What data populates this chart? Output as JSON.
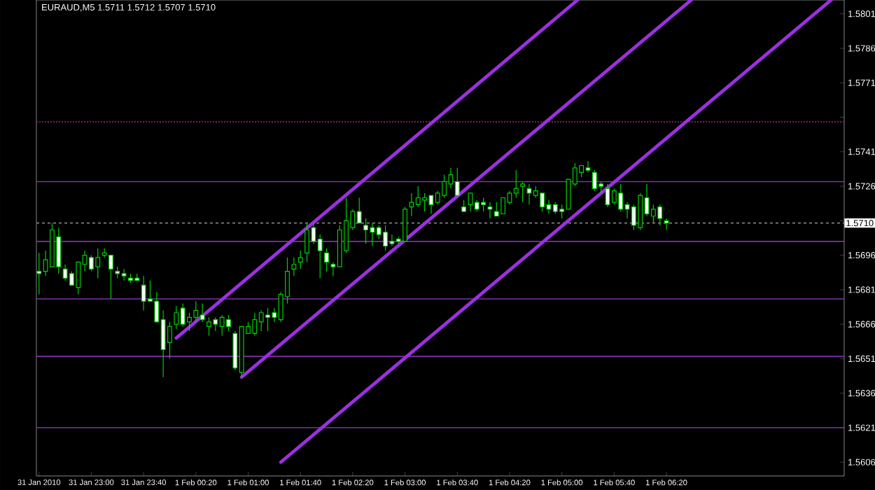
{
  "chart_data": {
    "type": "candlestick",
    "title": "EURAUD,M5  1.5711 1.5712 1.5707 1.5710",
    "color": "#00d000",
    "x": [
      "2010-01-31T22:20",
      "2010-01-31T22:25",
      "2010-01-31T22:30",
      "2010-01-31T22:35",
      "2010-01-31T22:40",
      "2010-01-31T22:45",
      "2010-01-31T22:50",
      "2010-01-31T22:55",
      "2010-01-31T23:00",
      "2010-01-31T23:05",
      "2010-01-31T23:10",
      "2010-01-31T23:15",
      "2010-01-31T23:20",
      "2010-01-31T23:25",
      "2010-01-31T23:30",
      "2010-01-31T23:35",
      "2010-01-31T23:40",
      "2010-01-31T23:45",
      "2010-01-31T23:50",
      "2010-01-31T23:55",
      "2010-02-01T00:00",
      "2010-02-01T00:05",
      "2010-02-01T00:10",
      "2010-02-01T00:15",
      "2010-02-01T00:20",
      "2010-02-01T00:25",
      "2010-02-01T00:30",
      "2010-02-01T00:35",
      "2010-02-01T00:40",
      "2010-02-01T00:45",
      "2010-02-01T00:50",
      "2010-02-01T00:55",
      "2010-02-01T01:00",
      "2010-02-01T01:05",
      "2010-02-01T01:10",
      "2010-02-01T01:15",
      "2010-02-01T01:20",
      "2010-02-01T01:25",
      "2010-02-01T01:30",
      "2010-02-01T01:35",
      "2010-02-01T01:40",
      "2010-02-01T01:45",
      "2010-02-01T01:50",
      "2010-02-01T01:55",
      "2010-02-01T02:00",
      "2010-02-01T02:05",
      "2010-02-01T02:10",
      "2010-02-01T02:15",
      "2010-02-01T02:20",
      "2010-02-01T02:25",
      "2010-02-01T02:30",
      "2010-02-01T02:35",
      "2010-02-01T02:40",
      "2010-02-01T02:45",
      "2010-02-01T02:50",
      "2010-02-01T02:55",
      "2010-02-01T03:00",
      "2010-02-01T03:05",
      "2010-02-01T03:10",
      "2010-02-01T03:15",
      "2010-02-01T03:20",
      "2010-02-01T03:25",
      "2010-02-01T03:30",
      "2010-02-01T03:35",
      "2010-02-01T03:40",
      "2010-02-01T03:45",
      "2010-02-01T03:50",
      "2010-02-01T03:55",
      "2010-02-01T04:00",
      "2010-02-01T04:05",
      "2010-02-01T04:10",
      "2010-02-01T04:15",
      "2010-02-01T04:20",
      "2010-02-01T04:25",
      "2010-02-01T04:30",
      "2010-02-01T04:35",
      "2010-02-01T04:40",
      "2010-02-01T04:45",
      "2010-02-01T04:50",
      "2010-02-01T04:55",
      "2010-02-01T05:00",
      "2010-02-01T05:05",
      "2010-02-01T05:10",
      "2010-02-01T05:15",
      "2010-02-01T05:20",
      "2010-02-01T05:25",
      "2010-02-01T05:30",
      "2010-02-01T05:35",
      "2010-02-01T05:40",
      "2010-02-01T05:45",
      "2010-02-01T05:50",
      "2010-02-01T05:55",
      "2010-02-01T06:00",
      "2010-02-01T06:05",
      "2010-02-01T06:10",
      "2010-02-01T06:15",
      "2010-02-01T06:20"
    ],
    "ohlc": [
      [
        1.5689,
        1.5697,
        1.5679,
        1.5688
      ],
      [
        1.5689,
        1.5698,
        1.5687,
        1.5694
      ],
      [
        1.5691,
        1.571,
        1.5691,
        1.5707
      ],
      [
        1.5704,
        1.5708,
        1.5688,
        1.5691
      ],
      [
        1.569,
        1.5692,
        1.5685,
        1.5686
      ],
      [
        1.5688,
        1.5689,
        1.5683,
        1.5683
      ],
      [
        1.5682,
        1.5693,
        1.5679,
        1.5693
      ],
      [
        1.5692,
        1.5698,
        1.5689,
        1.5696
      ],
      [
        1.5695,
        1.5696,
        1.5689,
        1.569
      ],
      [
        1.5691,
        1.5699,
        1.5686,
        1.5695
      ],
      [
        1.5696,
        1.5699,
        1.5695,
        1.5697
      ],
      [
        1.5696,
        1.5696,
        1.5677,
        1.569
      ],
      [
        1.5689,
        1.5691,
        1.5686,
        1.5688
      ],
      [
        1.5688,
        1.569,
        1.5685,
        1.5687
      ],
      [
        1.5686,
        1.5688,
        1.5684,
        1.5685
      ],
      [
        1.5686,
        1.5688,
        1.5685,
        1.5685
      ],
      [
        1.5683,
        1.5687,
        1.5672,
        1.5676
      ],
      [
        1.5677,
        1.5685,
        1.5676,
        1.5676
      ],
      [
        1.5676,
        1.568,
        1.5667,
        1.5667
      ],
      [
        1.5668,
        1.5672,
        1.5643,
        1.5655
      ],
      [
        1.5658,
        1.5667,
        1.5651,
        1.5665
      ],
      [
        1.5666,
        1.5674,
        1.5664,
        1.5671
      ],
      [
        1.5673,
        1.5675,
        1.5665,
        1.5666
      ],
      [
        1.5667,
        1.5671,
        1.5663,
        1.5669
      ],
      [
        1.5669,
        1.5676,
        1.5667,
        1.5672
      ],
      [
        1.567,
        1.5675,
        1.5667,
        1.5668
      ],
      [
        1.5665,
        1.5669,
        1.5661,
        1.5667
      ],
      [
        1.5668,
        1.5669,
        1.5663,
        1.5666
      ],
      [
        1.5665,
        1.567,
        1.5661,
        1.5669
      ],
      [
        1.5668,
        1.567,
        1.5663,
        1.5665
      ],
      [
        1.5662,
        1.5663,
        1.5646,
        1.5647
      ],
      [
        1.5645,
        1.5665,
        1.5643,
        1.5665
      ],
      [
        1.5662,
        1.5667,
        1.5662,
        1.5665
      ],
      [
        1.5662,
        1.5671,
        1.5661,
        1.5668
      ],
      [
        1.5667,
        1.5672,
        1.5663,
        1.5671
      ],
      [
        1.567,
        1.5673,
        1.5663,
        1.5669
      ],
      [
        1.5671,
        1.5673,
        1.5667,
        1.5669
      ],
      [
        1.5668,
        1.568,
        1.5667,
        1.5679
      ],
      [
        1.5678,
        1.5695,
        1.5675,
        1.5689
      ],
      [
        1.569,
        1.5695,
        1.5687,
        1.5692
      ],
      [
        1.5693,
        1.5698,
        1.569,
        1.5695
      ],
      [
        1.5697,
        1.571,
        1.5693,
        1.5707
      ],
      [
        1.5708,
        1.571,
        1.5701,
        1.5702
      ],
      [
        1.5703,
        1.5705,
        1.5686,
        1.5698
      ],
      [
        1.5697,
        1.5699,
        1.5689,
        1.5693
      ],
      [
        1.5692,
        1.5693,
        1.5687,
        1.5691
      ],
      [
        1.5691,
        1.5709,
        1.5691,
        1.5707
      ],
      [
        1.5698,
        1.5721,
        1.5697,
        1.5711
      ],
      [
        1.5708,
        1.5716,
        1.5707,
        1.5715
      ],
      [
        1.5715,
        1.5721,
        1.571,
        1.571
      ],
      [
        1.5709,
        1.5712,
        1.5701,
        1.5707
      ],
      [
        1.5708,
        1.571,
        1.57,
        1.5706
      ],
      [
        1.5708,
        1.5709,
        1.5703,
        1.5705
      ],
      [
        1.5706,
        1.5709,
        1.5698,
        1.57
      ],
      [
        1.5702,
        1.5705,
        1.57,
        1.5701
      ],
      [
        1.5703,
        1.5704,
        1.5701,
        1.5702
      ],
      [
        1.5702,
        1.5717,
        1.5702,
        1.5716
      ],
      [
        1.5717,
        1.5723,
        1.5713,
        1.5719
      ],
      [
        1.5718,
        1.5726,
        1.5717,
        1.5721
      ],
      [
        1.572,
        1.5723,
        1.5715,
        1.5721
      ],
      [
        1.5722,
        1.5722,
        1.5714,
        1.5718
      ],
      [
        1.5719,
        1.5724,
        1.5718,
        1.5723
      ],
      [
        1.5722,
        1.5731,
        1.5721,
        1.5728
      ],
      [
        1.5727,
        1.5734,
        1.5725,
        1.5731
      ],
      [
        1.5728,
        1.5734,
        1.5721,
        1.5722
      ],
      [
        1.5717,
        1.572,
        1.5715,
        1.5715
      ],
      [
        1.5718,
        1.5723,
        1.5715,
        1.5723
      ],
      [
        1.5719,
        1.572,
        1.5715,
        1.5716
      ],
      [
        1.5719,
        1.5721,
        1.5715,
        1.5718
      ],
      [
        1.5717,
        1.5719,
        1.5712,
        1.5716
      ],
      [
        1.5715,
        1.5719,
        1.5713,
        1.5713
      ],
      [
        1.5714,
        1.5721,
        1.5714,
        1.5721
      ],
      [
        1.5719,
        1.5724,
        1.5718,
        1.5723
      ],
      [
        1.5723,
        1.5733,
        1.5721,
        1.5725
      ],
      [
        1.5726,
        1.5728,
        1.5719,
        1.5727
      ],
      [
        1.5725,
        1.5727,
        1.5718,
        1.5723
      ],
      [
        1.5722,
        1.5726,
        1.5721,
        1.5724
      ],
      [
        1.5723,
        1.5723,
        1.5715,
        1.5717
      ],
      [
        1.5718,
        1.572,
        1.5714,
        1.5716
      ],
      [
        1.5718,
        1.5719,
        1.5714,
        1.5715
      ],
      [
        1.5716,
        1.5718,
        1.5712,
        1.5715
      ],
      [
        1.5716,
        1.5729,
        1.5716,
        1.5729
      ],
      [
        1.5727,
        1.5736,
        1.5726,
        1.5734
      ],
      [
        1.5732,
        1.5735,
        1.573,
        1.5735
      ],
      [
        1.5734,
        1.5737,
        1.5732,
        1.5733
      ],
      [
        1.5732,
        1.5733,
        1.5724,
        1.5725
      ],
      [
        1.5727,
        1.5728,
        1.5723,
        1.5726
      ],
      [
        1.5725,
        1.5727,
        1.5717,
        1.5718
      ],
      [
        1.5719,
        1.5725,
        1.5718,
        1.5724
      ],
      [
        1.5723,
        1.5727,
        1.5715,
        1.5716
      ],
      [
        1.5718,
        1.5719,
        1.5712,
        1.5716
      ],
      [
        1.5717,
        1.5718,
        1.5707,
        1.5709
      ],
      [
        1.5708,
        1.5723,
        1.5707,
        1.5722
      ],
      [
        1.5721,
        1.5727,
        1.5713,
        1.5714
      ],
      [
        1.5713,
        1.5718,
        1.571,
        1.5716
      ],
      [
        1.5717,
        1.5718,
        1.5709,
        1.5712
      ],
      [
        1.5711,
        1.5712,
        1.5707,
        1.571
      ]
    ],
    "series": [
      {
        "type": "line",
        "x": [
          "2010-02-01T00:05",
          "2010-02-01T05:12"
        ],
        "values": [
          1.566,
          1.5807
        ],
        "color": "#9b30e0"
      },
      {
        "type": "line",
        "x": [
          "2010-02-01T00:55",
          "2010-02-01T06:39"
        ],
        "values": [
          1.5643,
          1.5807
        ],
        "color": "#9b30e0"
      },
      {
        "type": "line",
        "x": [
          "2010-02-01T01:25",
          "2010-02-01T08:26"
        ],
        "values": [
          1.5606,
          1.5807
        ],
        "color": "#9b30e0"
      }
    ],
    "ref_lines": [
      {
        "axis": "y",
        "value": 1.5754,
        "color": "#8c2070",
        "line_style": "dotted"
      },
      {
        "axis": "y",
        "value": 1.5728,
        "color": "#8030a8"
      },
      {
        "axis": "y",
        "value": 1.571,
        "color": "#808080",
        "line_style": "dashed",
        "label": "1.5710"
      },
      {
        "axis": "y",
        "value": 1.5702,
        "color": "#8030a8"
      },
      {
        "axis": "y",
        "value": 1.5677,
        "color": "#8030a8"
      },
      {
        "axis": "y",
        "value": 1.5652,
        "color": "#8030a8"
      },
      {
        "axis": "y",
        "value": 1.5621,
        "color": "#8030a8"
      }
    ],
    "xlim": [
      "2010-01-31T22:18",
      "2010-02-01T08:36"
    ],
    "ylim": [
      1.56,
      1.5807
    ],
    "xticks": [
      {
        "value": "2010-01-31T22:20",
        "label": "31 Jan 2010"
      },
      {
        "value": "2010-01-31T23:00",
        "label": "31 Jan 23:00"
      },
      {
        "value": "2010-01-31T23:40",
        "label": "31 Jan 23:40"
      },
      {
        "value": "2010-02-01T00:20",
        "label": "1 Feb 00:20"
      },
      {
        "value": "2010-02-01T01:00",
        "label": "1 Feb 01:00"
      },
      {
        "value": "2010-02-01T01:40",
        "label": "1 Feb 01:40"
      },
      {
        "value": "2010-02-01T02:20",
        "label": "1 Feb 02:20"
      },
      {
        "value": "2010-02-01T03:00",
        "label": "1 Feb 03:00"
      },
      {
        "value": "2010-02-01T03:40",
        "label": "1 Feb 03:40"
      },
      {
        "value": "2010-02-01T04:20",
        "label": "1 Feb 04:20"
      },
      {
        "value": "2010-02-01T05:00",
        "label": "1 Feb 05:00"
      },
      {
        "value": "2010-02-01T05:40",
        "label": "1 Feb 05:40"
      },
      {
        "value": "2010-02-01T06:20",
        "label": "1 Feb 06:20"
      }
    ],
    "yticks": [
      1.5801,
      1.5786,
      1.5771,
      {
        "value": 1.5756,
        "label": null
      },
      1.5741,
      1.5726,
      {
        "value": 1.5711,
        "label": null
      },
      1.5696,
      1.5681,
      1.5666,
      1.5651,
      1.5636,
      1.5621,
      1.5606
    ]
  }
}
